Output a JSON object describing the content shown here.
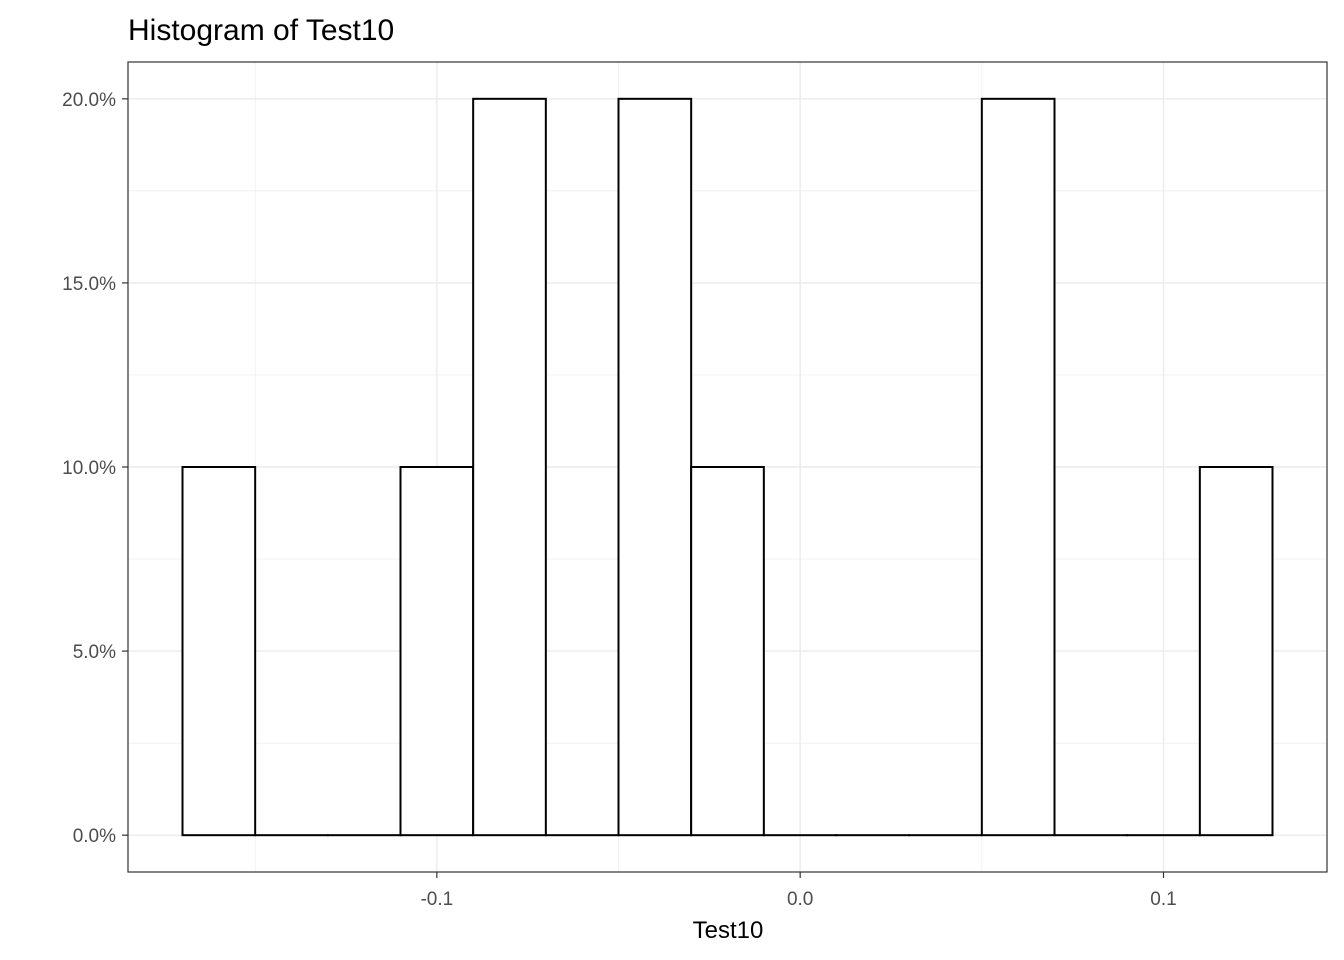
{
  "chart_data": {
    "type": "bar",
    "title": "Histogram of Test10",
    "xlabel": "Test10",
    "ylabel": "",
    "bin_width": 0.02,
    "bins": [
      {
        "x0": -0.17,
        "x1": -0.15,
        "value": 10
      },
      {
        "x0": -0.15,
        "x1": -0.13,
        "value": 0
      },
      {
        "x0": -0.13,
        "x1": -0.11,
        "value": 0
      },
      {
        "x0": -0.11,
        "x1": -0.09,
        "value": 10
      },
      {
        "x0": -0.09,
        "x1": -0.07,
        "value": 20
      },
      {
        "x0": -0.07,
        "x1": -0.05,
        "value": 0
      },
      {
        "x0": -0.05,
        "x1": -0.03,
        "value": 20
      },
      {
        "x0": -0.03,
        "x1": -0.01,
        "value": 10
      },
      {
        "x0": -0.01,
        "x1": 0.01,
        "value": 0
      },
      {
        "x0": 0.01,
        "x1": 0.03,
        "value": 0
      },
      {
        "x0": 0.03,
        "x1": 0.05,
        "value": 0
      },
      {
        "x0": 0.05,
        "x1": 0.07,
        "value": 20
      },
      {
        "x0": 0.07,
        "x1": 0.09,
        "value": 0
      },
      {
        "x0": 0.09,
        "x1": 0.11,
        "value": 0
      },
      {
        "x0": 0.11,
        "x1": 0.13,
        "value": 10
      }
    ],
    "x_ticks": [
      {
        "value": -0.1,
        "label": "-0.1"
      },
      {
        "value": 0.0,
        "label": "0.0"
      },
      {
        "value": 0.1,
        "label": "0.1"
      }
    ],
    "y_ticks": [
      {
        "value": 0,
        "label": "0.0%"
      },
      {
        "value": 5,
        "label": "5.0%"
      },
      {
        "value": 10,
        "label": "10.0%"
      },
      {
        "value": 15,
        "label": "15.0%"
      },
      {
        "value": 20,
        "label": "20.0%"
      }
    ],
    "xlim": [
      -0.185,
      0.145
    ],
    "ylim": [
      -1,
      21
    ],
    "grid": true,
    "colors": {
      "bar_fill": "#ffffff",
      "bar_stroke": "#000000",
      "grid": "#ebebeb",
      "panel_border": "#333333"
    }
  }
}
